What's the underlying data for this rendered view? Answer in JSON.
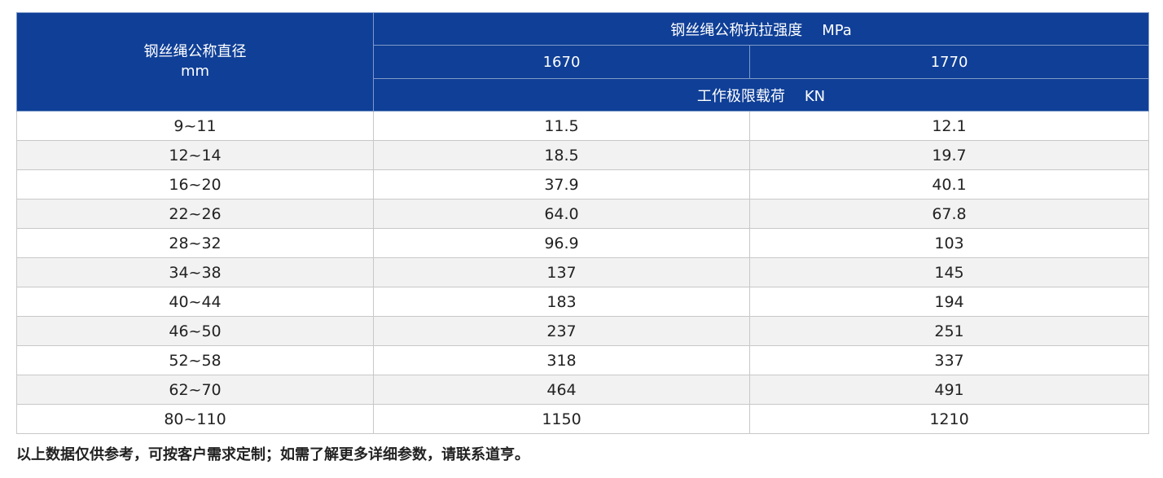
{
  "table": {
    "header": {
      "diameter_label": "钢丝绳公称直径",
      "diameter_unit": "mm",
      "strength_label": "钢丝绳公称抗拉强度",
      "strength_unit": "MPa",
      "strength_values": [
        "1670",
        "1770"
      ],
      "load_label": "工作极限载荷",
      "load_unit": "KN"
    },
    "rows": [
      {
        "diameter": "9~11",
        "v1670": "11.5",
        "v1770": "12.1"
      },
      {
        "diameter": "12~14",
        "v1670": "18.5",
        "v1770": "19.7"
      },
      {
        "diameter": "16~20",
        "v1670": "37.9",
        "v1770": "40.1"
      },
      {
        "diameter": "22~26",
        "v1670": "64.0",
        "v1770": "67.8"
      },
      {
        "diameter": "28~32",
        "v1670": "96.9",
        "v1770": "103"
      },
      {
        "diameter": "34~38",
        "v1670": "137",
        "v1770": "145"
      },
      {
        "diameter": "40~44",
        "v1670": "183",
        "v1770": "194"
      },
      {
        "diameter": "46~50",
        "v1670": "237",
        "v1770": "251"
      },
      {
        "diameter": "52~58",
        "v1670": "318",
        "v1770": "337"
      },
      {
        "diameter": "62~70",
        "v1670": "464",
        "v1770": "491"
      },
      {
        "diameter": "80~110",
        "v1670": "1150",
        "v1770": "1210"
      }
    ]
  },
  "footnote": "以上数据仅供参考，可按客户需求定制；如需了解更多详细参数，请联系道亨。"
}
